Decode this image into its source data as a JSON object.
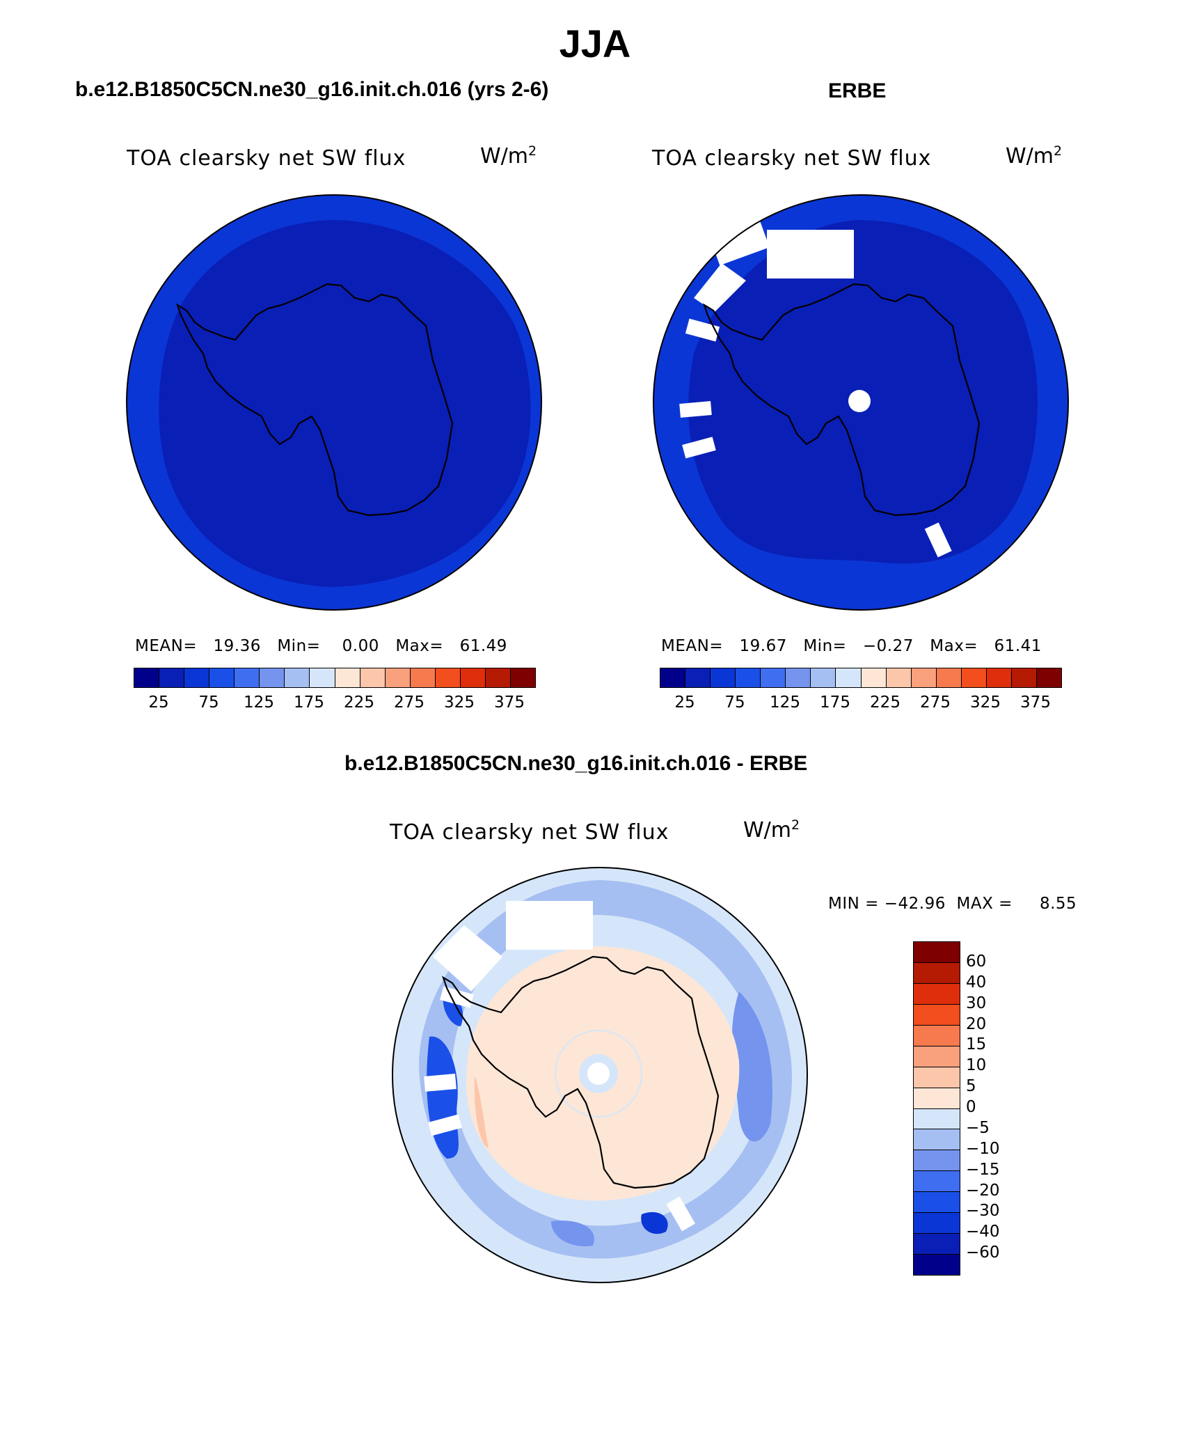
{
  "title": "JJA",
  "panels": {
    "model": {
      "title": "b.e12.B1850C5CN.ne30_g16.init.ch.016 (yrs 2-6)",
      "variable": "TOA clearsky net SW flux",
      "units_base": "W/m",
      "units_exp": "2",
      "mean_label": "MEAN=",
      "mean": "19.36",
      "min_label": "Min=",
      "min": "0.00",
      "max_label": "Max=",
      "max": "61.49"
    },
    "obs": {
      "title": "ERBE",
      "variable": "TOA clearsky net SW flux",
      "units_base": "W/m",
      "units_exp": "2",
      "mean_label": "MEAN=",
      "mean": "19.67",
      "min_label": "Min=",
      "min": "−0.27",
      "max_label": "Max=",
      "max": "61.41"
    },
    "diff": {
      "title": "b.e12.B1850C5CN.ne30_g16.init.ch.016 - ERBE",
      "variable": "TOA clearsky net SW flux",
      "units_base": "W/m",
      "units_exp": "2",
      "min_label": "MIN =",
      "min": "−42.96",
      "max_label": "MAX =",
      "max": "8.55"
    }
  },
  "colorbar_abs": {
    "colors": [
      "#00008b",
      "#0a1fb5",
      "#0b36d6",
      "#1a4fe8",
      "#3f6ef0",
      "#7494ee",
      "#a6bff2",
      "#d6e6fa",
      "#fde6d6",
      "#fcc6ab",
      "#f9a07d",
      "#f77a4f",
      "#f24e1e",
      "#df2e0b",
      "#b51a03",
      "#7f0000"
    ],
    "ticks": [
      "25",
      "75",
      "125",
      "175",
      "225",
      "275",
      "325",
      "375"
    ]
  },
  "colorbar_diff": {
    "colors": [
      "#7f0000",
      "#b51a03",
      "#df2e0b",
      "#f24e1e",
      "#f77a4f",
      "#f9a07d",
      "#fcc6ab",
      "#fde6d6",
      "#d6e6fa",
      "#a6bff2",
      "#7494ee",
      "#3f6ef0",
      "#1a4fe8",
      "#0b36d6",
      "#0a1fb5",
      "#00008b"
    ],
    "ticks": [
      "60",
      "40",
      "30",
      "20",
      "15",
      "10",
      "5",
      "0",
      "−5",
      "−10",
      "−15",
      "−20",
      "−30",
      "−40",
      "−60"
    ]
  },
  "map_colors": {
    "ocean_band": "#0b36d6",
    "inner_field": "#0a1fb5",
    "diff_positive": "#fde6d6",
    "diff_near_zero": "#d6e6fa",
    "diff_neg_light": "#a6bff2",
    "diff_neg_mid": "#7494ee",
    "diff_neg_strong": "#1a4fe8",
    "missing": "#ffffff"
  }
}
